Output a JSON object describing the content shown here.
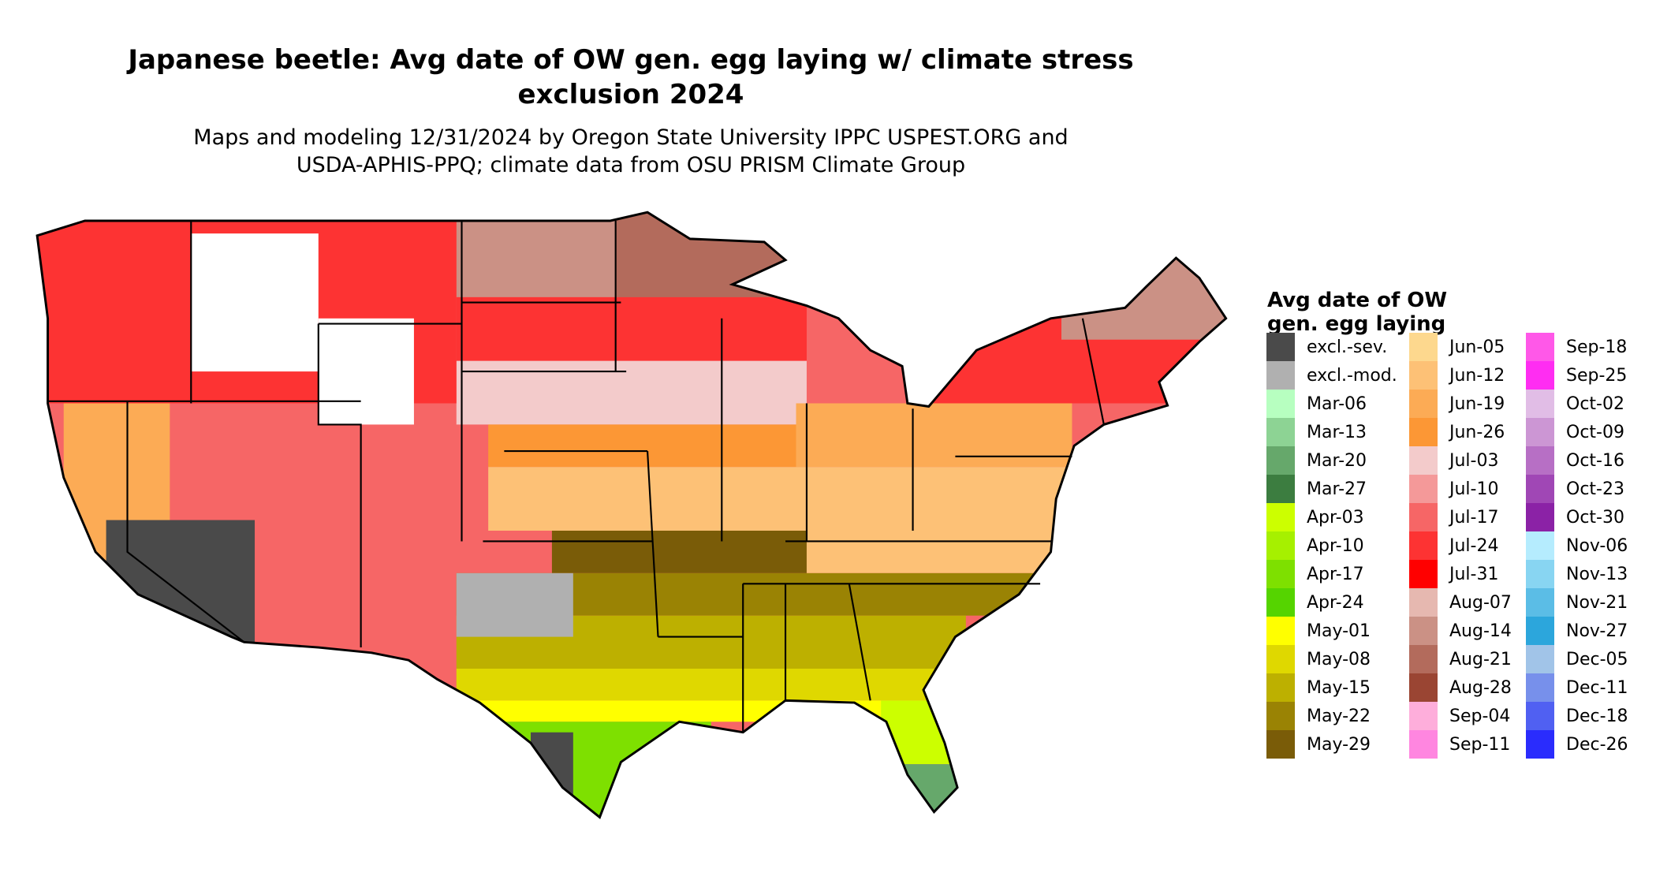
{
  "title_lines": [
    "Japanese beetle: Avg date of OW gen. egg laying w/ climate stress",
    "exclusion 2024"
  ],
  "subtitle_lines": [
    "Maps and modeling 12/31/2024 by Oregon State University IPPC USPEST.ORG and",
    "USDA-APHIS-PPQ; climate data from OSU PRISM Climate Group"
  ],
  "legend": {
    "title_lines": [
      "Avg date of OW",
      "gen. egg laying"
    ],
    "columns": [
      [
        {
          "label": "excl.-sev.",
          "color": "#4a4a4a"
        },
        {
          "label": "excl.-mod.",
          "color": "#b0b0b0"
        },
        {
          "label": "Mar-06",
          "color": "#b7ffc0"
        },
        {
          "label": "Mar-13",
          "color": "#8dd394"
        },
        {
          "label": "Mar-20",
          "color": "#66a86b"
        },
        {
          "label": "Mar-27",
          "color": "#3c7d40"
        },
        {
          "label": "Apr-03",
          "color": "#ccff00"
        },
        {
          "label": "Apr-10",
          "color": "#a6f000"
        },
        {
          "label": "Apr-17",
          "color": "#7ee000"
        },
        {
          "label": "Apr-24",
          "color": "#55d400"
        },
        {
          "label": "May-01",
          "color": "#ffff00"
        },
        {
          "label": "May-08",
          "color": "#dfd800"
        },
        {
          "label": "May-15",
          "color": "#bdb000"
        },
        {
          "label": "May-22",
          "color": "#9a8304"
        },
        {
          "label": "May-29",
          "color": "#7a5c08"
        }
      ],
      [
        {
          "label": "Jun-05",
          "color": "#fdd88e"
        },
        {
          "label": "Jun-12",
          "color": "#fdc176"
        },
        {
          "label": "Jun-19",
          "color": "#fcab55"
        },
        {
          "label": "Jun-26",
          "color": "#fc9735"
        },
        {
          "label": "Jul-03",
          "color": "#f3cbcb"
        },
        {
          "label": "Jul-10",
          "color": "#f49999"
        },
        {
          "label": "Jul-17",
          "color": "#f66666"
        },
        {
          "label": "Jul-24",
          "color": "#fd3333"
        },
        {
          "label": "Jul-31",
          "color": "#ff0000"
        },
        {
          "label": "Aug-07",
          "color": "#e6b8b0"
        },
        {
          "label": "Aug-14",
          "color": "#cb9185"
        },
        {
          "label": "Aug-21",
          "color": "#b36b5c"
        },
        {
          "label": "Aug-28",
          "color": "#9a4533"
        },
        {
          "label": "Sep-04",
          "color": "#feaedb"
        },
        {
          "label": "Sep-11",
          "color": "#ff86e0"
        }
      ],
      [
        {
          "label": "Sep-18",
          "color": "#ff58e8"
        },
        {
          "label": "Sep-25",
          "color": "#ff2df2"
        },
        {
          "label": "Oct-02",
          "color": "#e1bde6"
        },
        {
          "label": "Oct-09",
          "color": "#cc96d4"
        },
        {
          "label": "Oct-16",
          "color": "#b76fc5"
        },
        {
          "label": "Oct-23",
          "color": "#a047b5"
        },
        {
          "label": "Oct-30",
          "color": "#8b22a6"
        },
        {
          "label": "Nov-06",
          "color": "#b5ecfe"
        },
        {
          "label": "Nov-13",
          "color": "#88d5f2"
        },
        {
          "label": "Nov-21",
          "color": "#5bbde6"
        },
        {
          "label": "Nov-27",
          "color": "#2ca6dc"
        },
        {
          "label": "Dec-05",
          "color": "#a1c4e8"
        },
        {
          "label": "Dec-11",
          "color": "#7790eb"
        },
        {
          "label": "Dec-18",
          "color": "#5060f2"
        },
        {
          "label": "Dec-26",
          "color": "#2a2cfd"
        }
      ]
    ]
  }
}
